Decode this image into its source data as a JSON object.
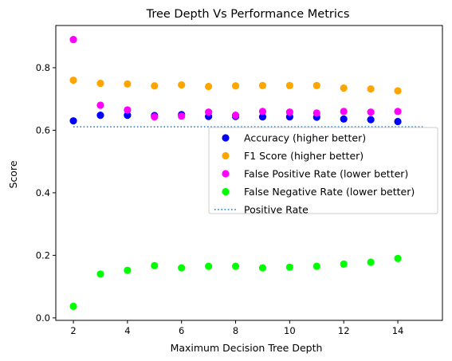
{
  "chart_data": {
    "type": "scatter",
    "title": "Tree Depth Vs Performance Metrics",
    "xlabel": "Maximum Decision Tree Depth",
    "ylabel": "Score",
    "xlim": [
      1.35,
      15.65
    ],
    "ylim": [
      -0.008,
      0.935
    ],
    "xticks": [
      2,
      4,
      6,
      8,
      10,
      12,
      14
    ],
    "yticks": [
      0.0,
      0.2,
      0.4,
      0.6,
      0.8
    ],
    "ytick_labels": [
      "0.0",
      "0.2",
      "0.4",
      "0.6",
      "0.8"
    ],
    "grid": false,
    "legend_position": "center-right",
    "x": [
      2,
      3,
      4,
      5,
      6,
      7,
      8,
      9,
      10,
      11,
      12,
      13,
      14
    ],
    "series": [
      {
        "name": "Accuracy (higher better)",
        "kind": "scatter",
        "color": "#0000ff",
        "values": [
          0.63,
          0.648,
          0.648,
          0.647,
          0.65,
          0.644,
          0.644,
          0.643,
          0.643,
          0.642,
          0.636,
          0.634,
          0.628
        ]
      },
      {
        "name": "F1 Score (higher better)",
        "kind": "scatter",
        "color": "#ffa500",
        "values": [
          0.76,
          0.75,
          0.748,
          0.742,
          0.745,
          0.74,
          0.742,
          0.743,
          0.743,
          0.743,
          0.735,
          0.732,
          0.726
        ]
      },
      {
        "name": "False Positive Rate (lower better)",
        "kind": "scatter",
        "color": "#ff00ff",
        "values": [
          0.89,
          0.68,
          0.665,
          0.643,
          0.645,
          0.658,
          0.648,
          0.66,
          0.658,
          0.655,
          0.66,
          0.658,
          0.66
        ]
      },
      {
        "name": "False Negative Rate (lower better)",
        "kind": "scatter",
        "color": "#00ff00",
        "values": [
          0.037,
          0.14,
          0.152,
          0.167,
          0.16,
          0.165,
          0.165,
          0.16,
          0.162,
          0.165,
          0.172,
          0.178,
          0.19
        ]
      },
      {
        "name": "Positive Rate",
        "kind": "line",
        "style": "dotted",
        "color": "#1f77b4",
        "x": [
          2,
          15
        ],
        "values": [
          0.611,
          0.611
        ]
      }
    ]
  }
}
